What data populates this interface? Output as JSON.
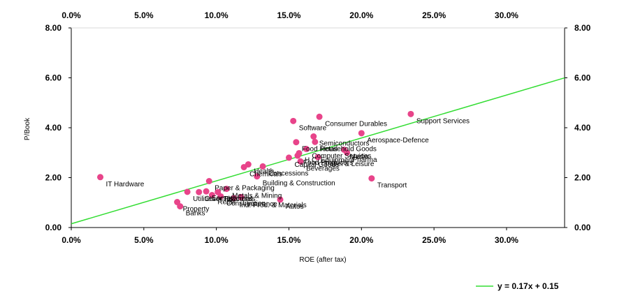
{
  "chart_data": {
    "type": "scatter",
    "xlabel": "ROE (after tax)",
    "ylabel": "P/Book",
    "x_format": "percent",
    "xlim": [
      0,
      0.34
    ],
    "ylim": [
      0,
      8
    ],
    "x_ticks": [
      0,
      0.05,
      0.1,
      0.15,
      0.2,
      0.25,
      0.3
    ],
    "y_ticks": [
      0,
      2,
      4,
      6,
      8
    ],
    "x_tick_labels": [
      "0.0%",
      "5.0%",
      "10.0%",
      "15.0%",
      "20.0%",
      "25.0%",
      "30.0%"
    ],
    "y_tick_labels": [
      "0.00",
      "2.00",
      "4.00",
      "6.00",
      "8.00"
    ],
    "grid": false,
    "marker_color": "#e8448a",
    "trend_color": "#33dd33",
    "trendline": {
      "slope": 17.2,
      "intercept": 0.15,
      "label": "y = 0.17x + 0.15"
    },
    "legend_position": "bottom-right",
    "points": [
      {
        "label": "IT Hardware",
        "x": 0.02,
        "y": 2.02
      },
      {
        "label": "Support Services",
        "x": 0.234,
        "y": 4.55
      },
      {
        "label": "Consumer Durables",
        "x": 0.171,
        "y": 4.44
      },
      {
        "label": "Software",
        "x": 0.153,
        "y": 4.27
      },
      {
        "label": "Aerospace-Defence",
        "x": 0.2,
        "y": 3.78
      },
      {
        "label": "Semiconductors",
        "x": 0.167,
        "y": 3.65
      },
      {
        "label": "Food Retail",
        "x": 0.155,
        "y": 3.42
      },
      {
        "label": "Household Goods",
        "x": 0.168,
        "y": 3.43
      },
      {
        "label": "Media",
        "x": 0.188,
        "y": 3.12
      },
      {
        "label": "Computer Services",
        "x": 0.162,
        "y": 3.15
      },
      {
        "label": "Pharma",
        "x": 0.19,
        "y": 3.0
      },
      {
        "label": "H.C. Equipment",
        "x": 0.157,
        "y": 2.98
      },
      {
        "label": "Food Producers",
        "x": 0.156,
        "y": 2.88
      },
      {
        "label": "Travel & Leisure",
        "x": 0.17,
        "y": 2.82
      },
      {
        "label": "Capital Goods",
        "x": 0.15,
        "y": 2.8
      },
      {
        "label": "Beverages",
        "x": 0.158,
        "y": 2.65
      },
      {
        "label": "Health",
        "x": 0.122,
        "y": 2.53
      },
      {
        "label": "Concessions",
        "x": 0.132,
        "y": 2.45
      },
      {
        "label": "Chemicals",
        "x": 0.119,
        "y": 2.42
      },
      {
        "label": "Transport",
        "x": 0.207,
        "y": 1.97
      },
      {
        "label": "Building & Construction",
        "x": 0.128,
        "y": 2.05
      },
      {
        "label": "Paper & Packaging",
        "x": 0.095,
        "y": 1.86
      },
      {
        "label": "Metals & Mining",
        "x": 0.107,
        "y": 1.55
      },
      {
        "label": "Telecoms",
        "x": 0.101,
        "y": 1.42
      },
      {
        "label": "Utilities",
        "x": 0.08,
        "y": 1.43
      },
      {
        "label": "Other Financials",
        "x": 0.088,
        "y": 1.42
      },
      {
        "label": "Energy",
        "x": 0.093,
        "y": 1.45
      },
      {
        "label": "Retail",
        "x": 0.097,
        "y": 1.3
      },
      {
        "label": "Construction",
        "x": 0.103,
        "y": 1.25
      },
      {
        "label": "Autos",
        "x": 0.144,
        "y": 1.12
      },
      {
        "label": "Ind. Prod. & Materials",
        "x": 0.112,
        "y": 1.18
      },
      {
        "label": "Insurance",
        "x": 0.117,
        "y": 1.22
      },
      {
        "label": "Property",
        "x": 0.073,
        "y": 1.02
      },
      {
        "label": "Banks",
        "x": 0.075,
        "y": 0.85
      }
    ]
  }
}
